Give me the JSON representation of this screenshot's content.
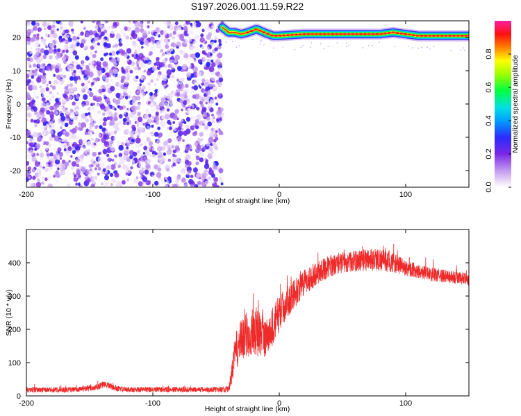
{
  "title": "S197.2026.001.11.59.R22",
  "chart_data": [
    {
      "type": "heatmap",
      "xlabel": "Height of straight line (km)",
      "ylabel": "Frequency (Hz)",
      "xlim": [
        -200,
        150
      ],
      "ylim": [
        -25,
        25
      ],
      "xticks": [
        -200,
        -100,
        0,
        100
      ],
      "yticks": [
        -20,
        -10,
        0,
        10,
        20
      ],
      "colorbar": {
        "label": "Normalized spectral amplitude",
        "range": [
          0,
          1
        ],
        "ticks": [
          0.0,
          0.2,
          0.4,
          0.6,
          0.8
        ]
      },
      "noise_region": {
        "x_range": [
          -200,
          -45
        ],
        "y_range": [
          -25,
          25
        ],
        "amplitude_range": [
          0.0,
          0.3
        ]
      },
      "signal_track": {
        "x_range": [
          -45,
          150
        ],
        "amplitude": 0.95,
        "points": [
          {
            "x": -47,
            "y": 25
          },
          {
            "x": -45,
            "y": 23
          },
          {
            "x": -40,
            "y": 21.5
          },
          {
            "x": -35,
            "y": 21.5
          },
          {
            "x": -30,
            "y": 21
          },
          {
            "x": -25,
            "y": 21.5
          },
          {
            "x": -18,
            "y": 22.5
          },
          {
            "x": -12,
            "y": 21.5
          },
          {
            "x": -5,
            "y": 20.5
          },
          {
            "x": 0,
            "y": 20.5
          },
          {
            "x": 20,
            "y": 21
          },
          {
            "x": 50,
            "y": 21
          },
          {
            "x": 80,
            "y": 21
          },
          {
            "x": 90,
            "y": 21.5
          },
          {
            "x": 100,
            "y": 21
          },
          {
            "x": 110,
            "y": 20.5
          },
          {
            "x": 120,
            "y": 20.5
          },
          {
            "x": 135,
            "y": 20.5
          },
          {
            "x": 150,
            "y": 20.5
          }
        ]
      }
    },
    {
      "type": "line",
      "xlabel": "Height of straight line (km)",
      "ylabel": "SNR (10 * v/v)",
      "xlim": [
        -200,
        150
      ],
      "ylim": [
        0,
        500
      ],
      "xticks": [
        -200,
        -100,
        0,
        100
      ],
      "yticks": [
        0,
        100,
        200,
        300,
        400
      ],
      "color": "#ee2a2a",
      "series": [
        {
          "x": [
            -200,
            -180,
            -160,
            -145,
            -140,
            -135,
            -130,
            -120,
            -100,
            -80,
            -60,
            -50,
            -40,
            -38,
            -35,
            -30,
            -25,
            -20,
            -15,
            -10,
            -5,
            0,
            10,
            20,
            30,
            40,
            50,
            60,
            70,
            80,
            90,
            100,
            110,
            120,
            130,
            140,
            150
          ],
          "values": [
            18,
            18,
            19,
            25,
            33,
            32,
            22,
            19,
            19,
            19,
            19,
            19,
            20,
            55,
            130,
            165,
            185,
            200,
            185,
            175,
            210,
            250,
            300,
            340,
            370,
            390,
            400,
            405,
            410,
            410,
            400,
            385,
            375,
            365,
            360,
            355,
            350
          ],
          "noise": [
            8,
            8,
            8,
            10,
            10,
            10,
            8,
            8,
            8,
            8,
            8,
            8,
            10,
            25,
            55,
            65,
            75,
            75,
            70,
            60,
            60,
            55,
            45,
            40,
            35,
            32,
            30,
            32,
            35,
            35,
            30,
            25,
            22,
            20,
            20,
            20,
            18
          ]
        }
      ]
    }
  ]
}
